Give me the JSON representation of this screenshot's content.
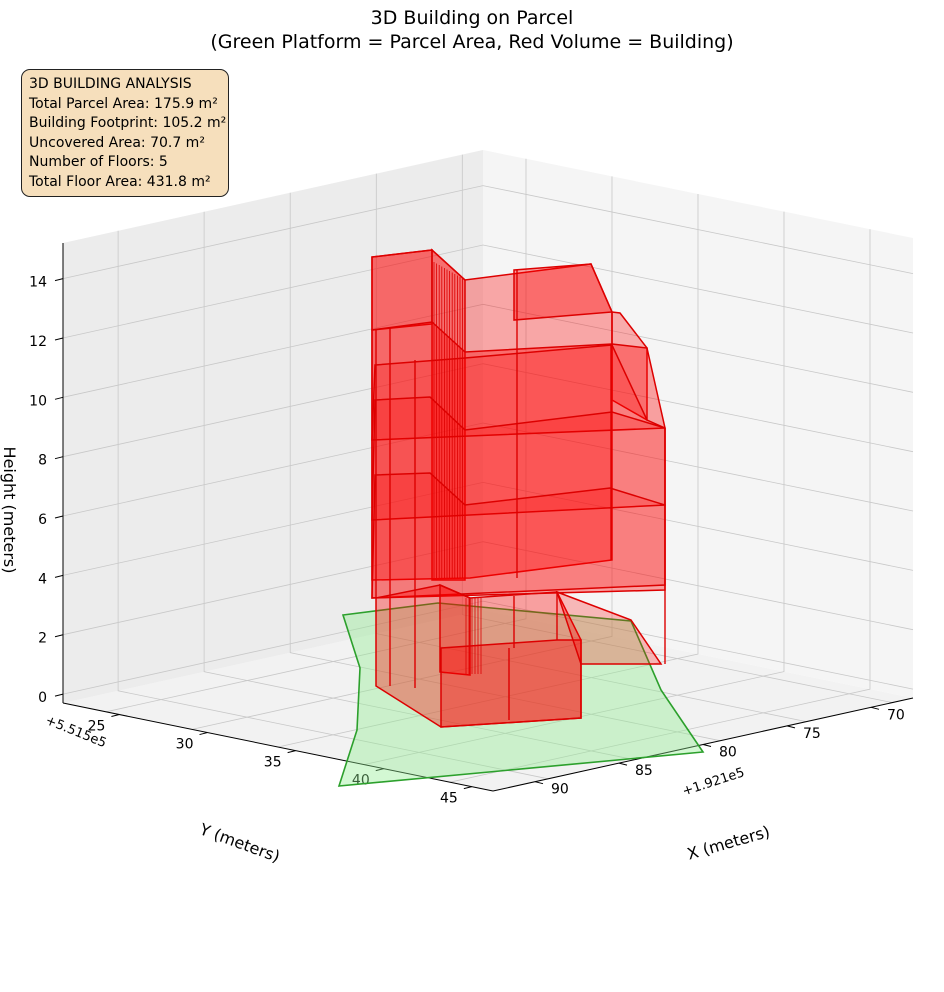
{
  "title_line1": "3D Building on Parcel",
  "title_line2": "(Green Platform = Parcel Area, Red Volume = Building)",
  "info_box": {
    "heading": "3D BUILDING ANALYSIS",
    "parcel_area": "Total Parcel Area: 175.9 m²",
    "footprint": "Building Footprint: 105.2 m²",
    "uncovered": "Uncovered Area: 70.7 m²",
    "floors": "Number of Floors: 5",
    "floor_area": "Total Floor Area: 431.8 m²"
  },
  "colors": {
    "building_face": "#ff0000",
    "building_edge": "#dd0000",
    "parcel_face": "#90ee90",
    "parcel_edge": "#2ca02c",
    "info_box_bg": "#f6dfbc"
  },
  "chart_data": {
    "type": "3d-polygon",
    "xlabel": "X (meters)",
    "ylabel": "Y (meters)",
    "zlabel": "Height (meters)",
    "x_offset_label": "+1.921e5",
    "y_offset_label": "+5.515e5",
    "x_ticks": [
      "70",
      "75",
      "80",
      "85",
      "90"
    ],
    "y_ticks": [
      "25",
      "30",
      "35",
      "40",
      "45"
    ],
    "z_ticks": [
      "0",
      "2",
      "4",
      "6",
      "8",
      "10",
      "12",
      "14"
    ],
    "grid": true,
    "parcel_area_m2": 175.9,
    "building_footprint_m2": 105.2,
    "uncovered_area_m2": 70.7,
    "floors": 5,
    "total_floor_area_m2": 431.8
  }
}
